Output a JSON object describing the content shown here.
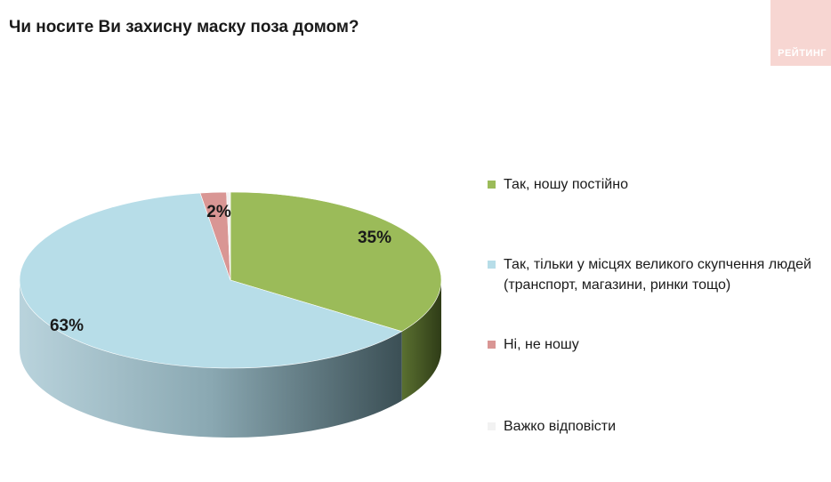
{
  "title": "Чи носите Ви захисну маску поза домом?",
  "logo_text": "РЕЙТИНГ",
  "chart_data": {
    "type": "pie",
    "title": "Чи носите Ви захисну маску поза домом?",
    "categories": [
      "Так, ношу постійно",
      "Так, тільки у місцях великого скупчення людей (транспорт, магазини, ринки тощо)",
      "Ні, не ношу",
      "Важко відповісти"
    ],
    "values": [
      35,
      63,
      2,
      0.3
    ],
    "data_labels": [
      "35%",
      "63%",
      "2%",
      ""
    ],
    "colors": [
      "#9bbb59",
      "#b7dde8",
      "#d99694",
      "#f2f2f2"
    ],
    "side_colors": [
      "#4f6228",
      "#6e9fac",
      "#a05a58",
      "#cccccc"
    ],
    "legend_position": "right",
    "three_d": true
  }
}
